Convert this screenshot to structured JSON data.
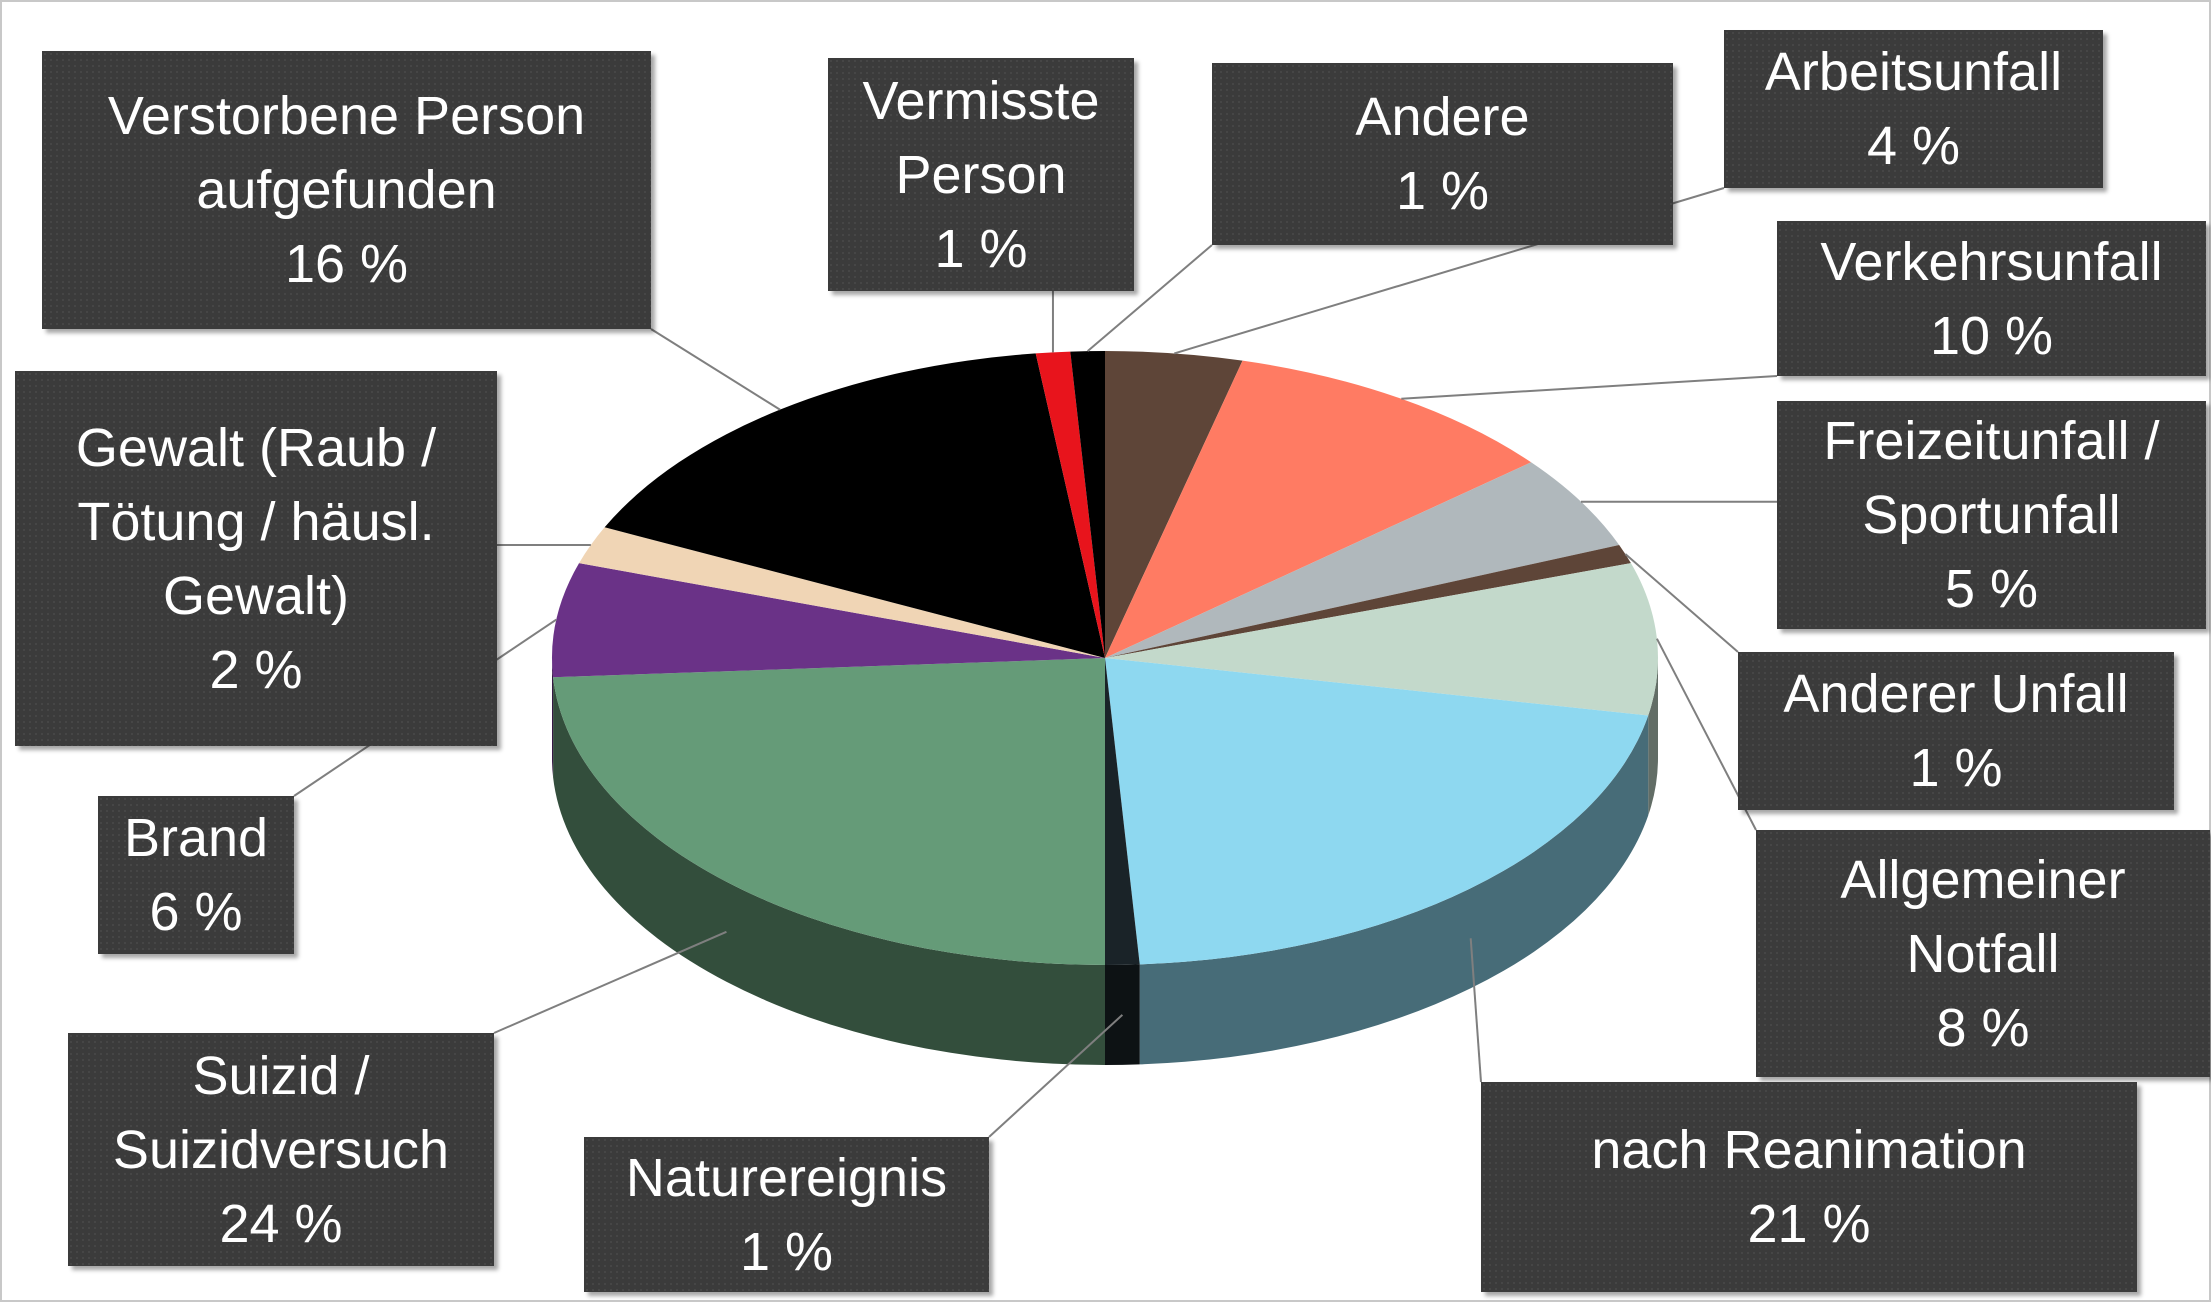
{
  "chart_data": {
    "type": "pie",
    "categories": [
      "Arbeitsunfall",
      "Verkehrsunfall",
      "Freizeitunfall / Sportunfall",
      "Anderer Unfall",
      "Allgemeiner Notfall",
      "nach Reanimation",
      "Naturereignis",
      "Suizid / Suizidversuch",
      "Brand",
      "Gewalt (Raub / Tötung / häusl. Gewalt)",
      "Verstorbene Person aufgefunden",
      "Vermisste Person",
      "Andere"
    ],
    "values": [
      4,
      10,
      5,
      1,
      8,
      21,
      1,
      24,
      6,
      2,
      16,
      1,
      1
    ],
    "value_labels": [
      "4 %",
      "10 %",
      "5 %",
      "1 %",
      "8 %",
      "21 %",
      "1 %",
      "24 %",
      "6 %",
      "2 %",
      "16 %",
      "1 %",
      "1 %"
    ],
    "colors": [
      "#5e4538",
      "#ff7b63",
      "#b0b8bc",
      "#5e4538",
      "#c3d9cb",
      "#8ed8f0",
      "#1a2328",
      "#659b78",
      "#6a3287",
      "#f0d5b5",
      "#000000",
      "#e8141c",
      "#000000"
    ]
  }
}
